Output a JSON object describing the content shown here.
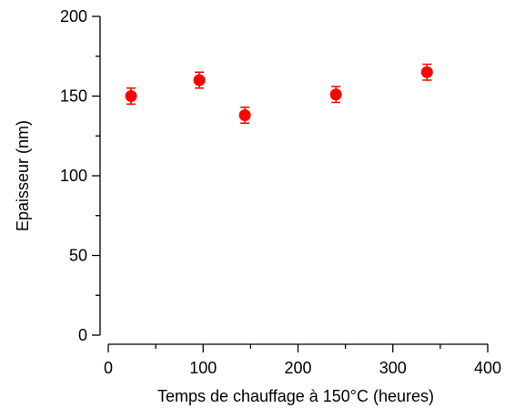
{
  "chart_data": {
    "type": "scatter",
    "xlabel": "Temps de chauffage à 150°C (heures)",
    "ylabel": "Epaisseur (nm)",
    "xlim": [
      0,
      400
    ],
    "ylim": [
      0,
      200
    ],
    "x_ticks": [
      0,
      100,
      200,
      300,
      400
    ],
    "y_ticks": [
      0,
      50,
      100,
      150,
      200
    ],
    "x_minor_ticks": [
      50,
      150,
      250,
      350
    ],
    "y_minor_ticks": [
      25,
      75,
      125,
      175
    ],
    "grid": false,
    "marker_color": "#ff0000",
    "series": [
      {
        "x": [
          24,
          96,
          144,
          240,
          336
        ],
        "y": [
          150,
          160,
          138,
          151,
          165
        ],
        "error": [
          5,
          5,
          5,
          5,
          5
        ]
      }
    ]
  }
}
